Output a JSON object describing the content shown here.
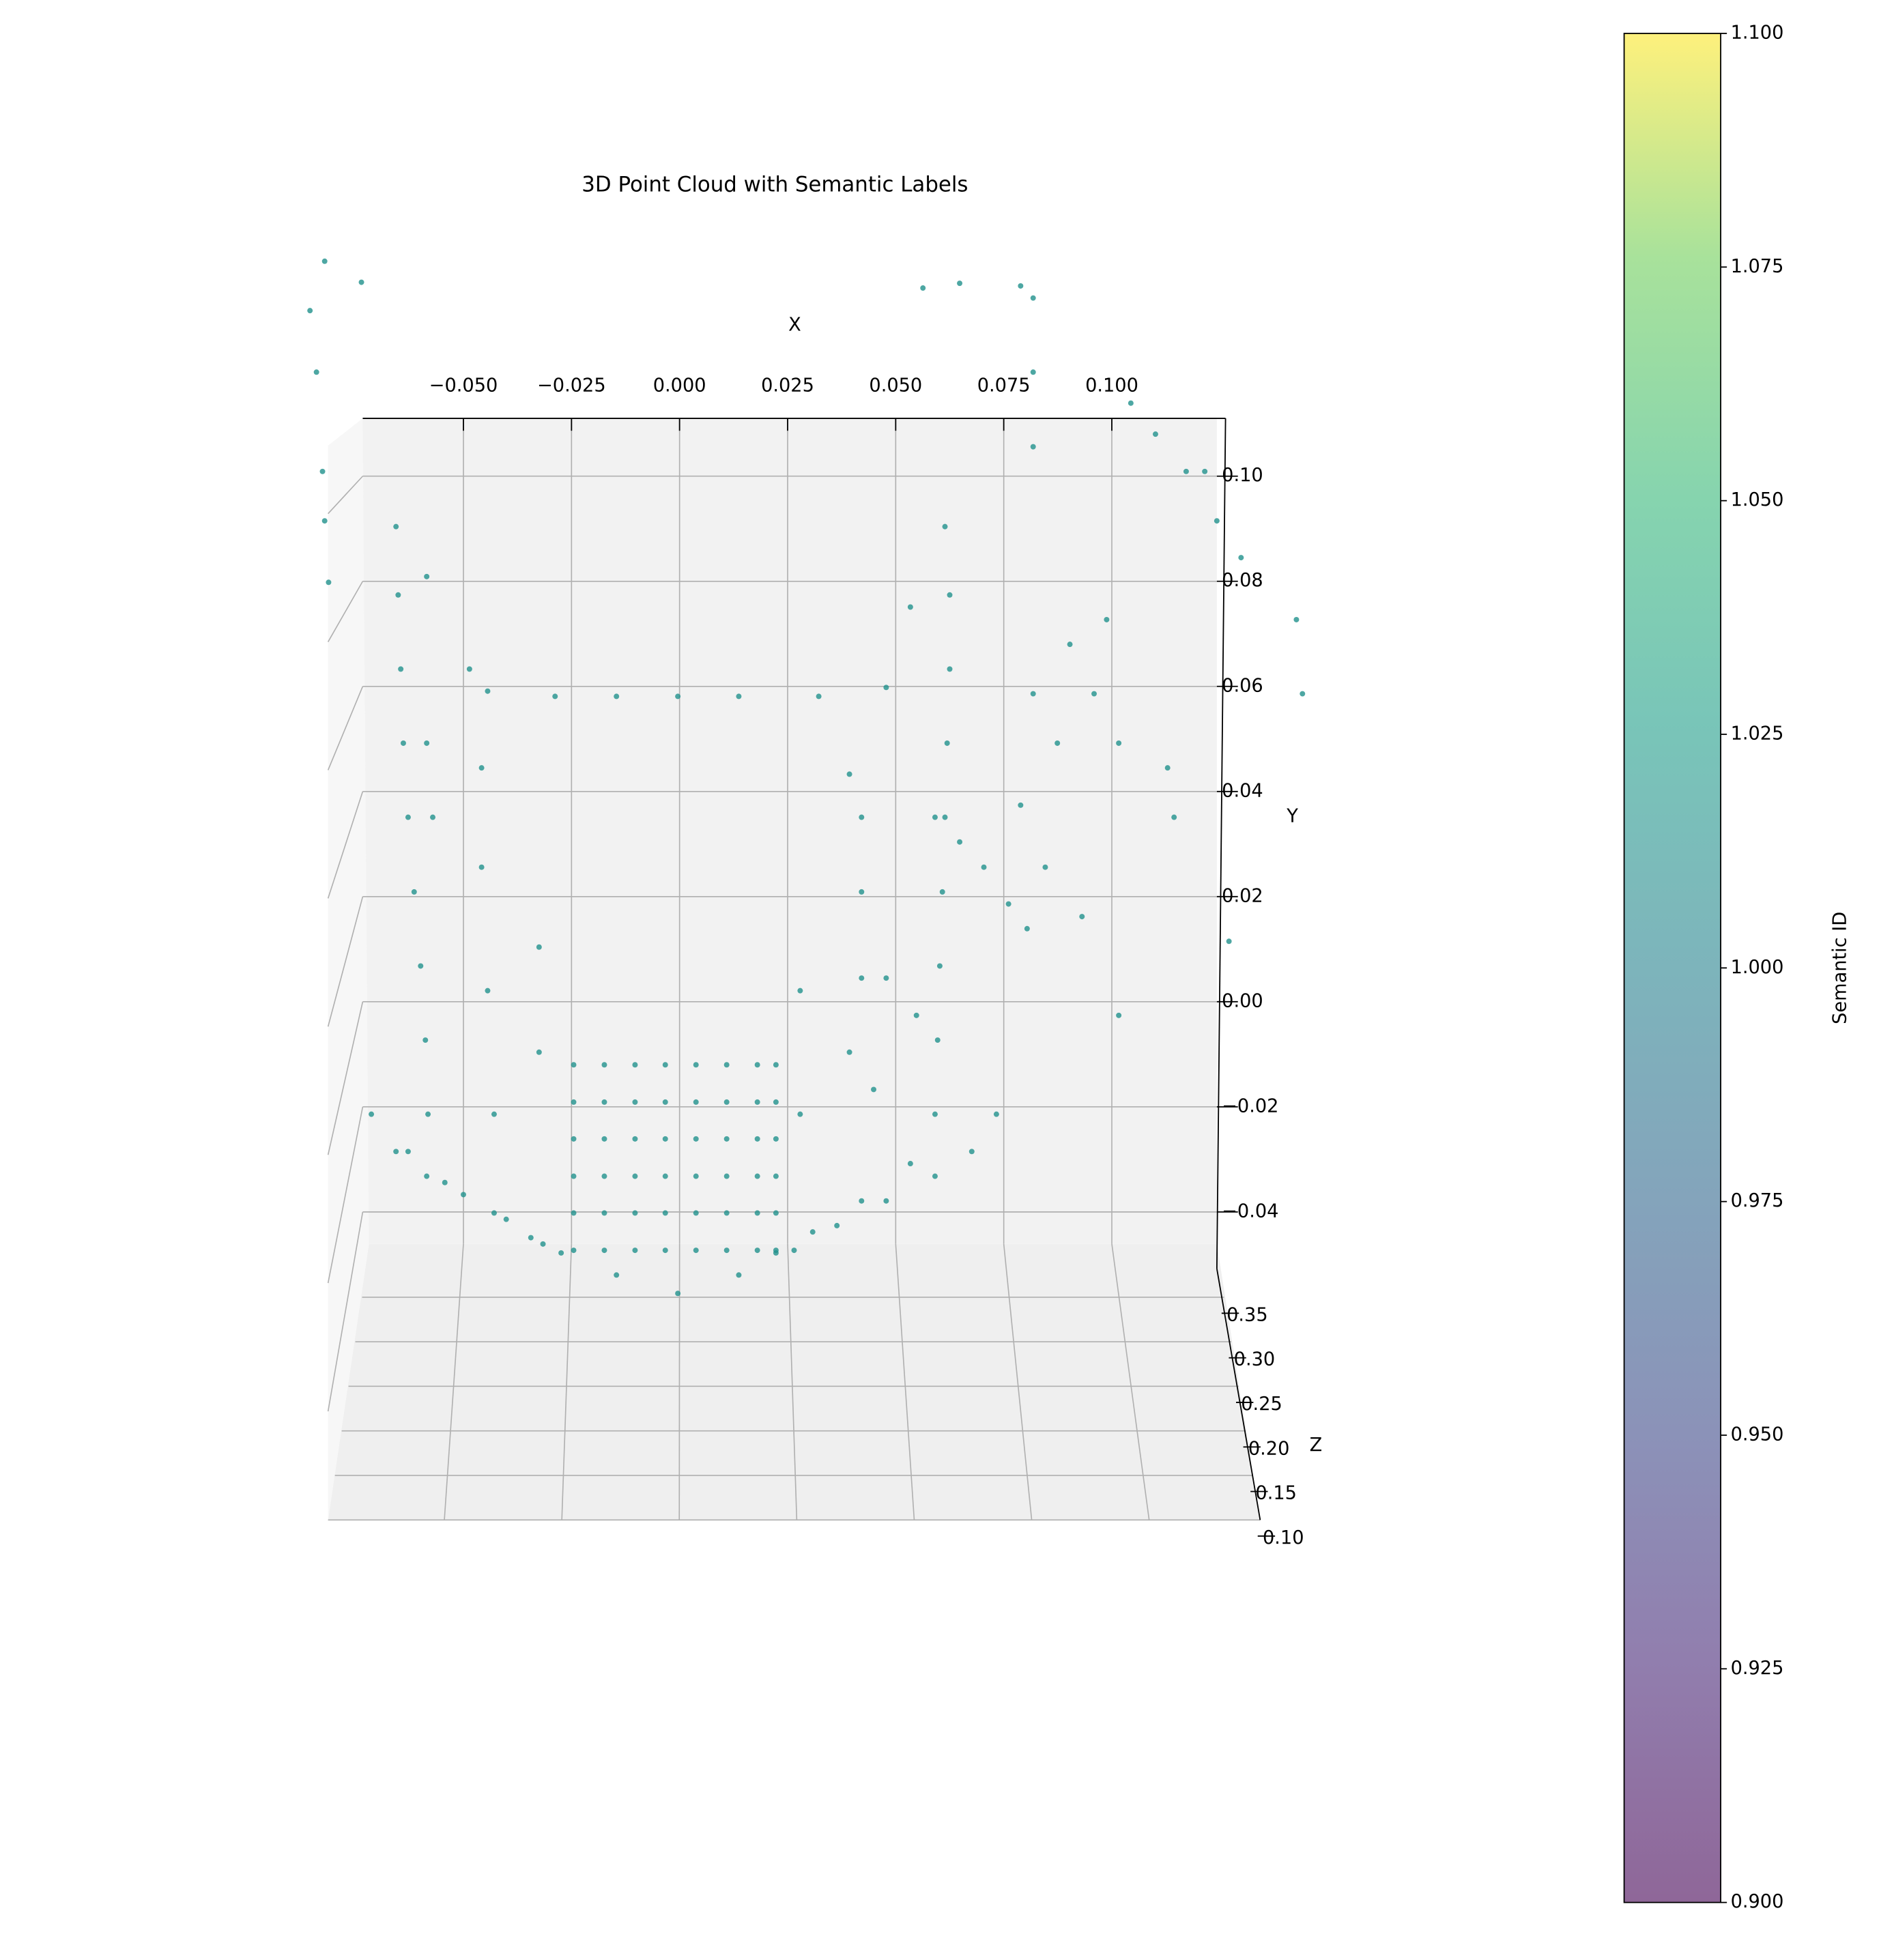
{
  "chart_data": {
    "type": "scatter3d",
    "title": "3D Point Cloud with Semantic Labels",
    "x_label": "X",
    "y_label": "Y",
    "z_label": "Z",
    "xlim": [
      -0.0733,
      0.1243
    ],
    "xticks": [
      {
        "value": -0.05,
        "label": "−0.050"
      },
      {
        "value": -0.025,
        "label": "−0.025"
      },
      {
        "value": 0,
        "label": "0.000"
      },
      {
        "value": 0.025,
        "label": "0.025"
      },
      {
        "value": 0.05,
        "label": "0.050"
      },
      {
        "value": 0.075,
        "label": "0.075"
      },
      {
        "value": 0.1,
        "label": "0.100"
      }
    ],
    "ylim": [
      -0.0508,
      0.111
    ],
    "yticks": [
      {
        "value": 0.1,
        "label": "0.10"
      },
      {
        "value": 0.08,
        "label": "0.08"
      },
      {
        "value": 0.06,
        "label": "0.06"
      },
      {
        "value": 0.04,
        "label": "0.04"
      },
      {
        "value": 0.02,
        "label": "0.02"
      },
      {
        "value": 0,
        "label": "0.00"
      },
      {
        "value": -0.02,
        "label": "−0.02"
      },
      {
        "value": -0.04,
        "label": "−0.04"
      }
    ],
    "zlim": [
      0.1,
      0.4
    ],
    "zticks": [
      {
        "value": 0.35,
        "label": "0.35"
      },
      {
        "value": 0.3,
        "label": "0.30"
      },
      {
        "value": 0.25,
        "label": "0.25"
      },
      {
        "value": 0.2,
        "label": "0.20"
      },
      {
        "value": 0.15,
        "label": "0.15"
      },
      {
        "value": 0.1,
        "label": "0.10"
      }
    ],
    "grid": true,
    "series": [
      {
        "color": "#21918c",
        "x": [
          -0.0656,
          -0.0651,
          -0.0645,
          -0.0639,
          -0.0628,
          -0.0614,
          -0.0599,
          -0.0588,
          -0.0582,
          -0.0628,
          -0.0543,
          -0.0429,
          -0.0344,
          -0.0274,
          -0.0713,
          -0.0656,
          -0.0585,
          -0.05,
          -0.0401,
          -0.0316,
          -0.0444,
          -0.0288,
          -0.0146,
          -0.0004,
          0.0137,
          0.0322,
          0.0614,
          0.0625,
          0.0625,
          0.0619,
          0.0614,
          0.0608,
          0.0602,
          0.0597,
          0.0591,
          0.0534,
          0.0421,
          0.0308,
          0.0223,
          0.0733,
          0.0676,
          0.0591,
          0.0478,
          0.0364,
          0.0265,
          -0.0458,
          -0.0458,
          -0.0444,
          -0.0429,
          -0.0325,
          -0.0325,
          0.0421,
          0.0421,
          0.0279,
          0.0279,
          0.0393,
          0.0449,
          0.0421,
          0.0478,
          0.0548,
          0.0591,
          0.0648,
          0.0704,
          0.0761,
          0.0804,
          0.0874,
          0.0959,
          0.1016,
          0.1129,
          0.1144,
          0.0988,
          0.0903,
          0.0818,
          0.0789,
          0.0846,
          0.0931,
          0.1016,
          0.1271,
          0.1427,
          0.1441,
          0.1215,
          0.1243,
          0.1299,
          -0.0855,
          -0.0821,
          -0.0736,
          -0.084,
          -0.0826,
          -0.0821,
          -0.0812,
          -0.0585,
          -0.0585,
          -0.0571,
          -0.0486,
          0.0818,
          0.0818,
          0.0818,
          0.0789,
          0.0648,
          0.0563,
          0.1044,
          0.1101,
          0.1172,
          0.0478,
          0.0393,
          0.0534,
          -0.0245,
          -0.0174,
          -0.0103,
          -0.0033,
          0.0038,
          0.0109,
          0.018,
          0.0223,
          -0.0245,
          -0.0174,
          -0.0103,
          -0.0033,
          0.0038,
          0.0109,
          0.018,
          0.0223,
          -0.0245,
          -0.0174,
          -0.0103,
          -0.0033,
          0.0038,
          0.0109,
          0.018,
          0.0223,
          -0.0245,
          -0.0174,
          -0.0103,
          -0.0033,
          0.0038,
          0.0109,
          0.018,
          0.0223,
          -0.0245,
          -0.0174,
          -0.0103,
          -0.0033,
          0.0038,
          0.0109,
          0.018,
          0.0223,
          -0.0245,
          -0.0174,
          -0.0103,
          -0.0033,
          0.0038,
          0.0109,
          0.018,
          0.0223,
          -0.0146,
          -0.0004,
          0.0137
        ],
        "y": [
          0.0904,
          0.0774,
          0.0633,
          0.0492,
          0.0351,
          0.0209,
          0.0068,
          -0.0073,
          -0.0214,
          -0.0285,
          -0.0344,
          -0.0402,
          -0.0449,
          -0.0478,
          -0.0214,
          -0.0285,
          -0.0332,
          -0.0367,
          -0.0414,
          -0.0461,
          0.0591,
          0.0581,
          0.0581,
          0.0581,
          0.0581,
          0.0581,
          0.0904,
          0.0774,
          0.0633,
          0.0492,
          0.0351,
          0.0209,
          0.0068,
          -0.0073,
          -0.0214,
          -0.0308,
          -0.0379,
          -0.0438,
          -0.0478,
          -0.0214,
          -0.0285,
          -0.0332,
          -0.0379,
          -0.0426,
          -0.0473,
          0.0445,
          0.0256,
          0.0021,
          -0.0214,
          0.0104,
          -0.0096,
          0.0351,
          0.0209,
          0.0021,
          -0.0214,
          -0.0096,
          -0.0167,
          0.0045,
          0.0045,
          -0.0026,
          0.0351,
          0.0304,
          0.0256,
          0.0186,
          0.0139,
          0.0492,
          0.0586,
          0.0492,
          0.0445,
          0.0351,
          0.0727,
          0.068,
          0.0586,
          0.0374,
          0.0256,
          0.0162,
          -0.0026,
          0.0115,
          0.0727,
          0.0586,
          0.1009,
          0.0915,
          0.0845,
          0.1315,
          0.1409,
          0.1369,
          0.1198,
          0.1009,
          0.0915,
          0.0798,
          0.0809,
          0.0492,
          0.0351,
          0.0633,
          0.1339,
          0.1198,
          0.1056,
          0.1362,
          0.1367,
          0.1358,
          0.1139,
          0.108,
          0.1009,
          0.0598,
          0.0433,
          0.0751,
          -0.012,
          -0.012,
          -0.012,
          -0.012,
          -0.012,
          -0.012,
          -0.012,
          -0.012,
          -0.0191,
          -0.0191,
          -0.0191,
          -0.0191,
          -0.0191,
          -0.0191,
          -0.0191,
          -0.0191,
          -0.0261,
          -0.0261,
          -0.0261,
          -0.0261,
          -0.0261,
          -0.0261,
          -0.0261,
          -0.0261,
          -0.0332,
          -0.0332,
          -0.0332,
          -0.0332,
          -0.0332,
          -0.0332,
          -0.0332,
          -0.0332,
          -0.0402,
          -0.0402,
          -0.0402,
          -0.0402,
          -0.0402,
          -0.0402,
          -0.0402,
          -0.0402,
          -0.0473,
          -0.0473,
          -0.0473,
          -0.0473,
          -0.0473,
          -0.0473,
          -0.0473,
          -0.0473,
          -0.052,
          -0.0555,
          -0.052
        ]
      }
    ],
    "colorbar": {
      "label": "Semantic ID",
      "colormap": "viridis",
      "alpha": 0.6,
      "lim": [
        0.9,
        1.1
      ],
      "ticks": [
        {
          "value": 0.9,
          "label": "0.900"
        },
        {
          "value": 0.925,
          "label": "0.925"
        },
        {
          "value": 0.95,
          "label": "0.950"
        },
        {
          "value": 0.975,
          "label": "0.975"
        },
        {
          "value": 1,
          "label": "1.000"
        },
        {
          "value": 1.025,
          "label": "1.025"
        },
        {
          "value": 1.05,
          "label": "1.050"
        },
        {
          "value": 1.075,
          "label": "1.075"
        },
        {
          "value": 1.1,
          "label": "1.100"
        }
      ]
    }
  }
}
